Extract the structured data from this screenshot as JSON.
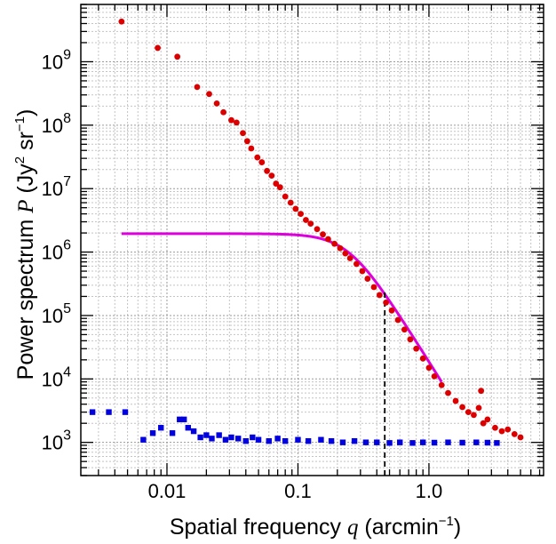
{
  "chart_data": {
    "type": "scatter",
    "x_scale": "log",
    "y_scale": "log",
    "xlim": [
      0.0022,
      7.5
    ],
    "ylim": [
      300,
      8000000000
    ],
    "grid": true,
    "x_ticks": [
      {
        "value": 0.01,
        "label": "0.01"
      },
      {
        "value": 0.1,
        "label": "0.1"
      },
      {
        "value": 1.0,
        "label": "1.0"
      }
    ],
    "y_ticks": [
      {
        "value": 1000,
        "base": "10",
        "exp": "3"
      },
      {
        "value": 10000,
        "base": "10",
        "exp": "4"
      },
      {
        "value": 100000,
        "base": "10",
        "exp": "5"
      },
      {
        "value": 1000000,
        "base": "10",
        "exp": "6"
      },
      {
        "value": 10000000,
        "base": "10",
        "exp": "7"
      },
      {
        "value": 100000000,
        "base": "10",
        "exp": "8"
      },
      {
        "value": 1000000000,
        "base": "10",
        "exp": "9"
      }
    ],
    "xlabel": {
      "text": "Spatial frequency ",
      "var": "q",
      "unit_open": " (arcmin",
      "unit_sup": "−1",
      "unit_close": ")"
    },
    "ylabel": {
      "text": "Power spectrum ",
      "var": "P",
      "unit_open": " (Jy",
      "unit_sup1": "2",
      "unit_mid": " sr",
      "unit_sup2": "−1",
      "unit_close": ")"
    },
    "series": [
      {
        "marker": "circle",
        "color": "#dd0000",
        "points": [
          [
            0.0045,
            4300000000.0
          ],
          [
            0.0085,
            1650000000.0
          ],
          [
            0.012,
            1200000000.0
          ],
          [
            0.017,
            400000000.0
          ],
          [
            0.021,
            310000000.0
          ],
          [
            0.024,
            220000000.0
          ],
          [
            0.027,
            160000000.0
          ],
          [
            0.031,
            120000000.0
          ],
          [
            0.034,
            110000000.0
          ],
          [
            0.038,
            75000000.0
          ],
          [
            0.041,
            56000000.0
          ],
          [
            0.044,
            43000000.0
          ],
          [
            0.049,
            31000000.0
          ],
          [
            0.053,
            26000000.0
          ],
          [
            0.058,
            19000000.0
          ],
          [
            0.063,
            16000000.0
          ],
          [
            0.068,
            12000000.0
          ],
          [
            0.073,
            10500000.0
          ],
          [
            0.08,
            7500000.0
          ],
          [
            0.088,
            6000000.0
          ],
          [
            0.096,
            4800000.0
          ],
          [
            0.105,
            4000000.0
          ],
          [
            0.115,
            3200000.0
          ],
          [
            0.125,
            2800000.0
          ],
          [
            0.14,
            2300000.0
          ],
          [
            0.155,
            1900000.0
          ],
          [
            0.17,
            1600000.0
          ],
          [
            0.19,
            1350000.0
          ],
          [
            0.21,
            1150000.0
          ],
          [
            0.23,
            950000.0
          ],
          [
            0.25,
            800000.0
          ],
          [
            0.28,
            650000.0
          ],
          [
            0.31,
            500000.0
          ],
          [
            0.34,
            380000.0
          ],
          [
            0.38,
            280000.0
          ],
          [
            0.42,
            210000.0
          ],
          [
            0.47,
            160000.0
          ],
          [
            0.52,
            120000.0
          ],
          [
            0.58,
            85000.0
          ],
          [
            0.65,
            60000.0
          ],
          [
            0.72,
            42000.0
          ],
          [
            0.8,
            30000.0
          ],
          [
            0.9,
            21000.0
          ],
          [
            1.0,
            15000.0
          ],
          [
            1.1,
            11000.0
          ],
          [
            1.25,
            8000
          ],
          [
            1.4,
            6000
          ],
          [
            1.6,
            4500
          ],
          [
            1.8,
            3600
          ],
          [
            2.0,
            3000
          ],
          [
            2.2,
            2700
          ],
          [
            2.4,
            3500
          ],
          [
            2.5,
            6500
          ],
          [
            2.6,
            2000
          ],
          [
            2.8,
            2300
          ],
          [
            3.2,
            1700
          ],
          [
            3.6,
            1500
          ],
          [
            4.0,
            1600
          ],
          [
            4.5,
            1350
          ],
          [
            5.0,
            1200
          ]
        ]
      },
      {
        "marker": "square",
        "color": "#0000e0",
        "points": [
          [
            0.0027,
            3000
          ],
          [
            0.0036,
            3000
          ],
          [
            0.0048,
            3000
          ],
          [
            0.0066,
            1100
          ],
          [
            0.0078,
            1400
          ],
          [
            0.009,
            1700
          ],
          [
            0.011,
            1400
          ],
          [
            0.0125,
            2300
          ],
          [
            0.0135,
            2300
          ],
          [
            0.0145,
            1700
          ],
          [
            0.016,
            1500
          ],
          [
            0.018,
            1200
          ],
          [
            0.02,
            1300
          ],
          [
            0.022,
            1150
          ],
          [
            0.025,
            1300
          ],
          [
            0.028,
            1100
          ],
          [
            0.031,
            1200
          ],
          [
            0.035,
            1150
          ],
          [
            0.04,
            1050
          ],
          [
            0.045,
            1200
          ],
          [
            0.05,
            1100
          ],
          [
            0.06,
            1050
          ],
          [
            0.07,
            1150
          ],
          [
            0.08,
            1050
          ],
          [
            0.1,
            1100
          ],
          [
            0.12,
            1050
          ],
          [
            0.15,
            1100
          ],
          [
            0.18,
            1050
          ],
          [
            0.22,
            1000
          ],
          [
            0.27,
            1050
          ],
          [
            0.33,
            1000
          ],
          [
            0.4,
            1000
          ],
          [
            0.5,
            980
          ],
          [
            0.6,
            1000
          ],
          [
            0.75,
            980
          ],
          [
            0.9,
            1000
          ],
          [
            1.1,
            990
          ],
          [
            1.4,
            1000
          ],
          [
            1.8,
            990
          ],
          [
            2.3,
            1000
          ],
          [
            2.8,
            990
          ],
          [
            3.3,
            980
          ]
        ]
      }
    ],
    "model_curve": {
      "color": "#dd00dd",
      "plateau": 1950000.0,
      "knee": 0.245,
      "slope": 3.3,
      "x_start": 0.0045,
      "x_end": 1.25
    },
    "reference_line": {
      "x": 0.46,
      "y_from": 300,
      "y_to": 250000,
      "style": "dashed",
      "color": "#000000"
    }
  }
}
